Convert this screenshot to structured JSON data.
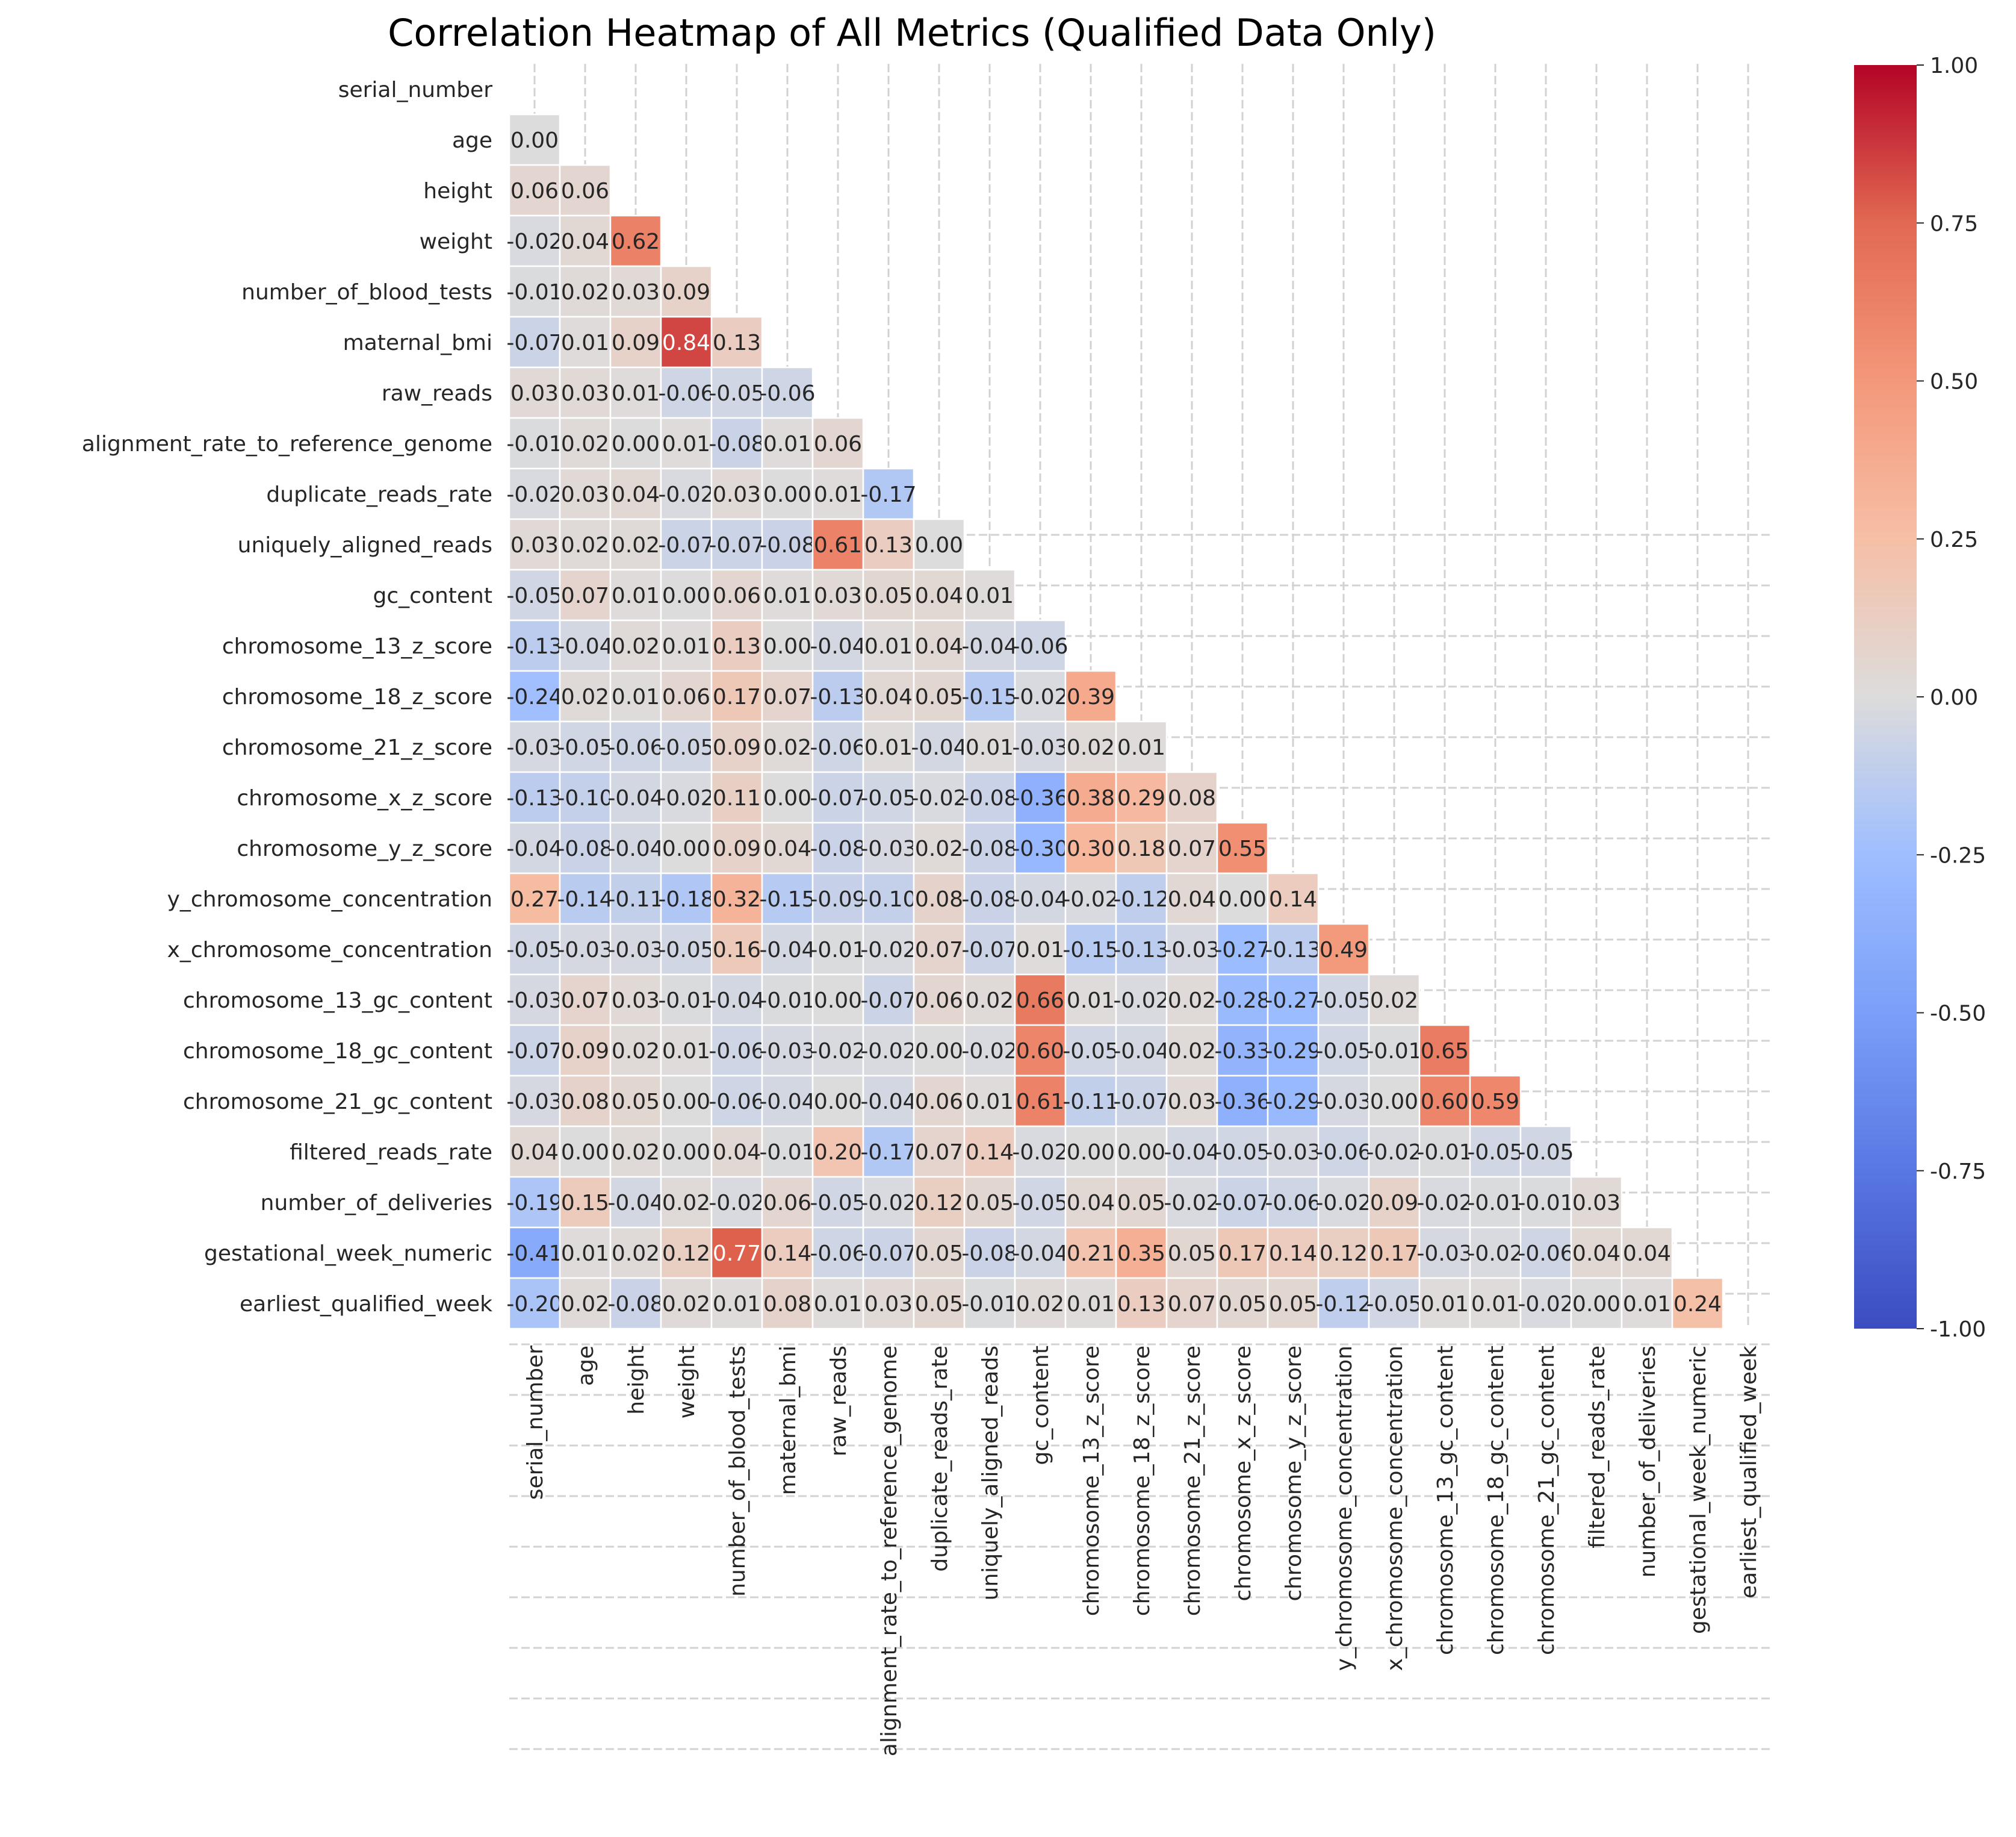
{
  "chart_data": {
    "type": "heatmap",
    "title": "Correlation Heatmap of All Metrics (Qualified Data Only)",
    "variables": [
      "serial_number",
      "age",
      "height",
      "weight",
      "number_of_blood_tests",
      "maternal_bmi",
      "raw_reads",
      "alignment_rate_to_reference_genome",
      "duplicate_reads_rate",
      "uniquely_aligned_reads",
      "gc_content",
      "chromosome_13_z_score",
      "chromosome_18_z_score",
      "chromosome_21_z_score",
      "chromosome_x_z_score",
      "chromosome_y_z_score",
      "y_chromosome_concentration",
      "x_chromosome_concentration",
      "chromosome_13_gc_content",
      "chromosome_18_gc_content",
      "chromosome_21_gc_content",
      "filtered_reads_rate",
      "number_of_deliveries",
      "gestational_week_numeric",
      "earliest_qualified_week"
    ],
    "mask": "upper triangle including diagonal",
    "lower_triangle_values": [
      [],
      [
        0.0
      ],
      [
        0.06,
        0.06
      ],
      [
        -0.02,
        0.04,
        0.62
      ],
      [
        -0.01,
        0.02,
        0.03,
        0.09
      ],
      [
        -0.07,
        0.01,
        0.09,
        0.84,
        0.13
      ],
      [
        0.03,
        0.03,
        0.01,
        -0.06,
        -0.05,
        -0.06
      ],
      [
        -0.01,
        0.02,
        0.0,
        0.01,
        -0.08,
        0.01,
        0.06
      ],
      [
        -0.02,
        0.03,
        0.04,
        -0.02,
        0.03,
        0.0,
        0.01,
        -0.17
      ],
      [
        0.03,
        0.02,
        0.02,
        -0.07,
        -0.07,
        -0.08,
        0.61,
        0.13,
        0.0
      ],
      [
        -0.05,
        0.07,
        0.01,
        -0.0,
        0.06,
        0.01,
        0.03,
        0.05,
        0.04,
        0.01
      ],
      [
        -0.13,
        -0.04,
        0.02,
        0.01,
        0.13,
        0.0,
        -0.04,
        0.01,
        0.04,
        -0.04,
        -0.06
      ],
      [
        -0.24,
        0.02,
        0.01,
        0.06,
        0.17,
        0.07,
        -0.13,
        0.04,
        0.05,
        -0.15,
        -0.02,
        0.39
      ],
      [
        -0.03,
        -0.05,
        -0.06,
        -0.05,
        0.09,
        0.02,
        -0.06,
        0.01,
        -0.04,
        0.01,
        -0.03,
        0.02,
        0.01
      ],
      [
        -0.13,
        -0.1,
        -0.04,
        -0.02,
        0.11,
        0.0,
        -0.07,
        -0.05,
        -0.02,
        -0.08,
        -0.36,
        0.38,
        0.29,
        0.08
      ],
      [
        -0.04,
        -0.08,
        -0.04,
        0.0,
        0.09,
        0.04,
        -0.08,
        -0.03,
        0.02,
        -0.08,
        -0.3,
        0.3,
        0.18,
        0.07,
        0.55
      ],
      [
        0.27,
        -0.14,
        -0.11,
        -0.18,
        0.32,
        -0.15,
        -0.09,
        -0.1,
        0.08,
        -0.08,
        -0.04,
        -0.02,
        -0.12,
        0.04,
        0.0,
        0.14
      ],
      [
        -0.05,
        -0.03,
        -0.03,
        -0.05,
        0.16,
        -0.04,
        -0.01,
        -0.02,
        0.07,
        -0.07,
        0.01,
        -0.15,
        -0.13,
        -0.03,
        -0.27,
        -0.13,
        0.49
      ],
      [
        -0.03,
        0.07,
        0.03,
        -0.01,
        -0.04,
        -0.01,
        0.0,
        -0.07,
        0.06,
        0.02,
        0.66,
        0.01,
        -0.02,
        0.02,
        -0.28,
        -0.27,
        -0.05,
        0.02
      ],
      [
        -0.07,
        0.09,
        0.02,
        0.01,
        -0.06,
        -0.03,
        -0.02,
        -0.02,
        0.0,
        -0.02,
        0.6,
        -0.05,
        -0.04,
        0.02,
        -0.33,
        -0.29,
        -0.05,
        -0.01,
        0.65
      ],
      [
        -0.03,
        0.08,
        0.05,
        -0.0,
        -0.06,
        -0.04,
        0.0,
        -0.04,
        0.06,
        0.01,
        0.61,
        -0.11,
        -0.07,
        0.03,
        -0.36,
        -0.29,
        -0.03,
        -0.0,
        0.6,
        0.59
      ],
      [
        0.04,
        0.0,
        0.02,
        -0.0,
        0.04,
        -0.01,
        0.2,
        -0.17,
        0.07,
        0.14,
        -0.02,
        0.0,
        0.0,
        -0.04,
        -0.05,
        -0.03,
        -0.06,
        -0.02,
        -0.01,
        -0.05,
        -0.05
      ],
      [
        -0.19,
        0.15,
        -0.04,
        0.02,
        -0.02,
        0.06,
        -0.05,
        -0.02,
        0.12,
        0.05,
        -0.05,
        0.04,
        0.05,
        -0.02,
        -0.07,
        -0.06,
        -0.02,
        0.09,
        -0.02,
        -0.01,
        -0.01,
        0.03
      ],
      [
        -0.41,
        0.01,
        0.02,
        0.12,
        0.77,
        0.14,
        -0.06,
        -0.07,
        0.05,
        -0.08,
        -0.04,
        0.21,
        0.35,
        0.05,
        0.17,
        0.14,
        0.12,
        0.17,
        -0.03,
        -0.02,
        -0.06,
        0.04,
        0.04
      ],
      [
        -0.2,
        0.02,
        -0.08,
        0.02,
        0.01,
        0.08,
        0.01,
        0.03,
        0.05,
        -0.01,
        0.02,
        0.01,
        0.13,
        0.07,
        0.05,
        0.05,
        -0.12,
        -0.05,
        0.01,
        0.01,
        -0.02,
        0.0,
        0.01,
        0.24
      ]
    ],
    "colormap": "coolwarm",
    "vmin": -1.0,
    "vmax": 1.0,
    "colorbar_ticks": [
      "1.00",
      "0.75",
      "0.50",
      "0.25",
      "0.00",
      "-0.25",
      "-0.50",
      "-0.75",
      "-1.00"
    ],
    "annotation_format": "0.00",
    "grid": true,
    "legend": "colorbar at right"
  }
}
